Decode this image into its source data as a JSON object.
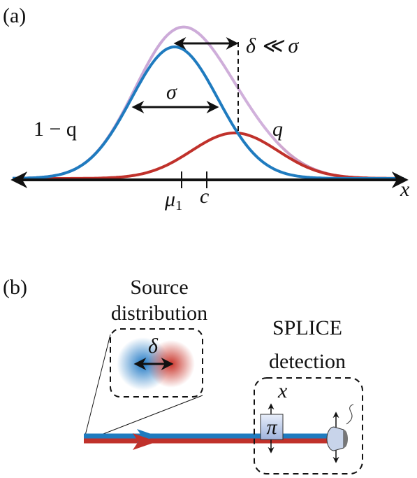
{
  "panel_a": {
    "label": "(a)",
    "delta_relation": "δ ≪ σ",
    "sigma": "σ",
    "left_weight": "1 − q",
    "right_weight": "q",
    "mu": "μ",
    "mu_sub": "1",
    "c": "c",
    "axis": "x"
  },
  "panel_b": {
    "label": "(b)",
    "source_title": [
      "Source",
      "distribution"
    ],
    "delta": "δ",
    "detection_title": [
      "SPLICE",
      "detection"
    ],
    "x": "x",
    "pi": "π"
  }
}
